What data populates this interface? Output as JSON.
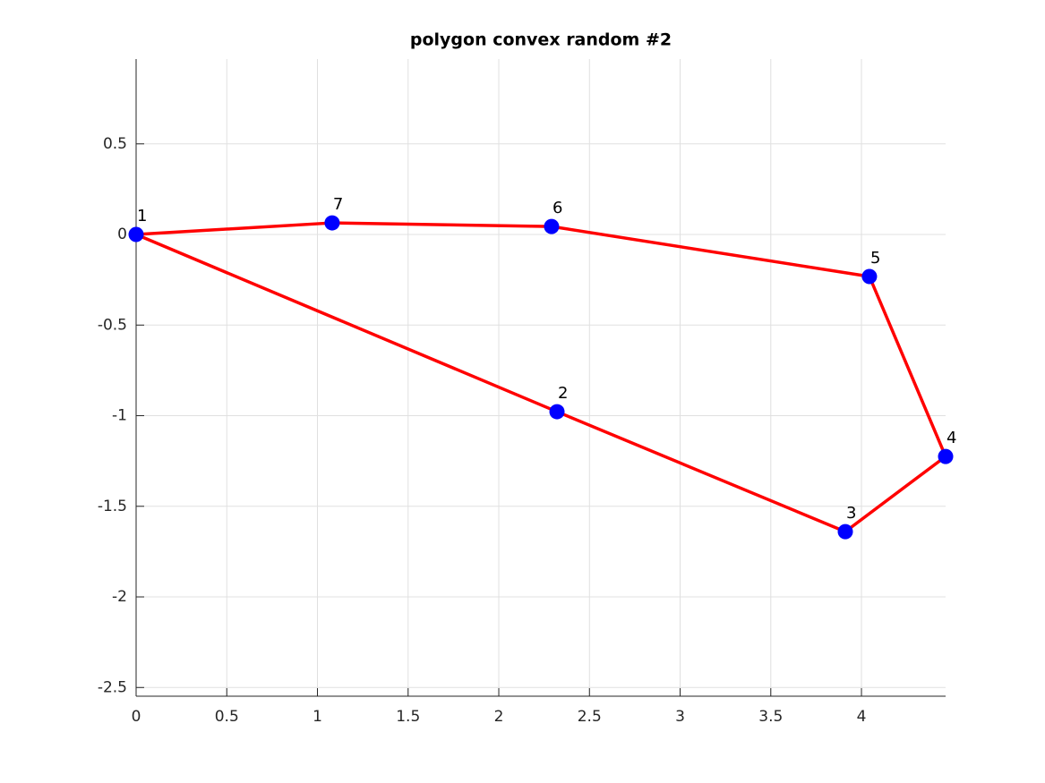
{
  "chart_data": {
    "type": "polygon",
    "title": "polygon convex random #2",
    "x": [
      0,
      2.321,
      3.911,
      4.464,
      4.044,
      2.291,
      1.081
    ],
    "series": [
      {
        "color": "#ff0000",
        "marker_color": "#0000ff",
        "values": [
          0,
          -0.978,
          -1.64,
          -1.225,
          -0.232,
          0.044,
          0.064
        ],
        "point_labels": [
          "1",
          "2",
          "3",
          "4",
          "5",
          "6",
          "7"
        ]
      }
    ],
    "closed": true,
    "xlim": [
      0,
      4.464
    ],
    "ylim": [
      -2.548,
      0.968
    ],
    "xticks": [
      0,
      0.5,
      1,
      1.5,
      2,
      2.5,
      3,
      3.5,
      4
    ],
    "yticks": [
      -2.5,
      -2,
      -1.5,
      -1,
      -0.5,
      0,
      0.5
    ],
    "grid": true
  }
}
